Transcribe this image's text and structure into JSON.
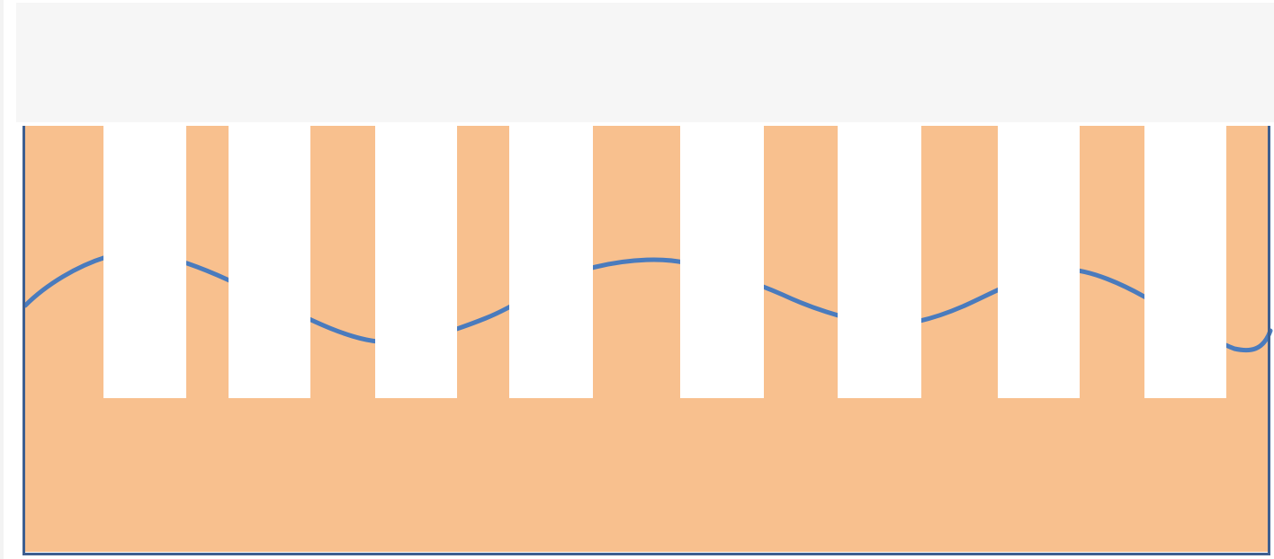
{
  "colors": {
    "page_background": "#ffffff",
    "left_edge": "#f3f3f3",
    "header_band": "#f6f6f6",
    "panel_fill": "#f8c08e",
    "frame": "#3e5f90",
    "slot_fill": "#ffffff",
    "wave_stroke": "#4a7bbd"
  },
  "icons": {
    "header": "blank-band",
    "panel": "orange-panel",
    "slots": "white-rectangles",
    "wave": "blue-wave-line"
  }
}
